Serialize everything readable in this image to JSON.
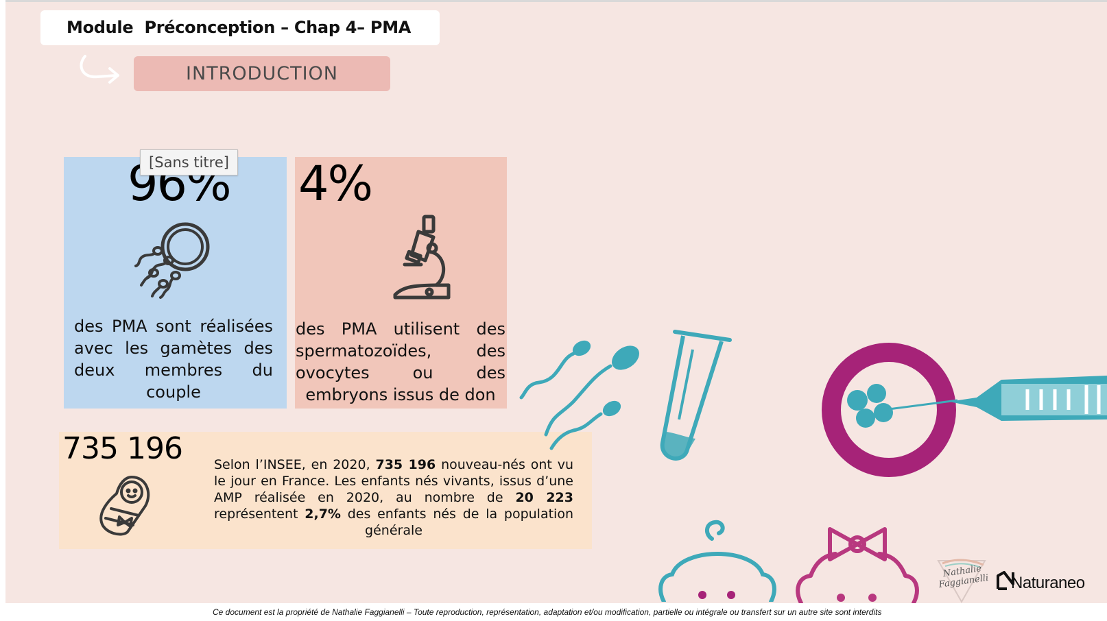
{
  "header": {
    "module_title": "Module  Préconception – Chap 4– PMA",
    "section_label": "INTRODUCTION"
  },
  "tooltip": {
    "label": "[Sans titre]"
  },
  "cards": {
    "gametes": {
      "value": "96%",
      "description": "des PMA sont réalisées avec les gamètes des deux membres du couple",
      "icon": "sperm-egg-icon"
    },
    "don": {
      "value": "4%",
      "description": "des PMA utilisent des spermatozoïdes, des ovocytes ou des embryons issus de don",
      "icon": "microscope-icon"
    },
    "naissances": {
      "value": "735 196",
      "text_prefix": "Selon l’INSEE, en 2020, ",
      "bold_births": "735 196",
      "text_mid1": " nouveau-nés ont vu le jour en France. Les enfants nés vivants, issus d’une AMP réalisée en 2020, au nombre de ",
      "bold_amp": "20 223",
      "text_mid2": " représentent ",
      "bold_pct": "2,7%",
      "text_suffix": " des enfants nés de la population générale",
      "icon": "swaddled-baby-icon"
    }
  },
  "illustration": {
    "icons": [
      "sperm-cell-icon",
      "test-tube-icon",
      "oocyte-injection-icon",
      "syringe-icon",
      "baby-boy-icon",
      "baby-girl-icon"
    ],
    "colors": {
      "teal": "#3ea9b9",
      "magenta": "#a62378",
      "pink": "#b8387f"
    }
  },
  "branding": {
    "signature": "Nathalie Faggianelli",
    "logo_name": "Naturaneo"
  },
  "footer": {
    "copyright": "Ce document est la propriété de Nathalie Faggianelli – Toute reproduction, représentation, adaptation et/ou modification, partielle ou intégrale ou transfert sur un autre site sont interdits"
  }
}
